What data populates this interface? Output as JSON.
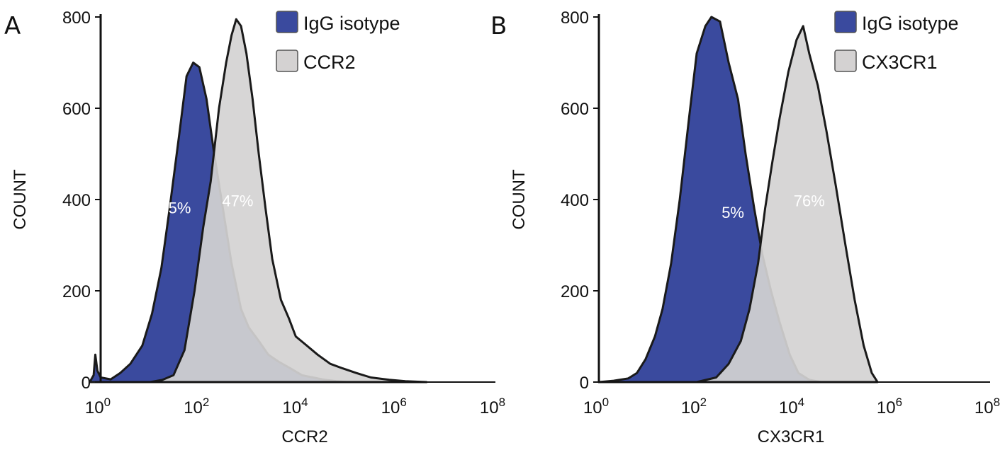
{
  "chart_data": [
    {
      "type": "area",
      "panel_letter": "A",
      "xlabel": "CCR2",
      "ylabel": "COUNT",
      "x_scale": "log10",
      "xlim": [
        1,
        100000000
      ],
      "ylim": [
        0,
        800
      ],
      "x_ticks": [
        {
          "base": "10",
          "exp": "0"
        },
        {
          "base": "10",
          "exp": "2"
        },
        {
          "base": "10",
          "exp": "4"
        },
        {
          "base": "10",
          "exp": "6"
        },
        {
          "base": "10",
          "exp": "8"
        }
      ],
      "y_ticks": [
        "0",
        "200",
        "400",
        "600",
        "800"
      ],
      "legend_position": "top-right",
      "legend": [
        {
          "label": "IgG isotype",
          "color": "#3a4a9e"
        },
        {
          "label": "CCR2",
          "color": "#d4d2d2"
        }
      ],
      "series": [
        {
          "name": "IgG isotype",
          "color": "#3a4a9e",
          "percent_label": "5%",
          "percent_at": {
            "x": 40,
            "y": 370
          },
          "points": [
            [
              0.6,
              0
            ],
            [
              0.72,
              15
            ],
            [
              0.78,
              60
            ],
            [
              0.86,
              25
            ],
            [
              1,
              10
            ],
            [
              1.6,
              6
            ],
            [
              2.5,
              20
            ],
            [
              4,
              40
            ],
            [
              7,
              80
            ],
            [
              11,
              150
            ],
            [
              17,
              250
            ],
            [
              25,
              380
            ],
            [
              40,
              550
            ],
            [
              55,
              670
            ],
            [
              75,
              700
            ],
            [
              100,
              690
            ],
            [
              140,
              620
            ],
            [
              200,
              500
            ],
            [
              300,
              380
            ],
            [
              450,
              260
            ],
            [
              700,
              160
            ],
            [
              1000,
              120
            ],
            [
              1600,
              90
            ],
            [
              2500,
              60
            ],
            [
              4000,
              45
            ],
            [
              7000,
              30
            ],
            [
              12000,
              15
            ],
            [
              20000,
              10
            ],
            [
              35000,
              5
            ],
            [
              60000,
              2
            ],
            [
              100000,
              0
            ]
          ]
        },
        {
          "name": "CCR2",
          "color": "#d4d2d2",
          "percent_label": "47%",
          "percent_at": {
            "x": 600,
            "y": 385
          },
          "points": [
            [
              0.6,
              0
            ],
            [
              5,
              0
            ],
            [
              10,
              0
            ],
            [
              18,
              5
            ],
            [
              30,
              15
            ],
            [
              50,
              70
            ],
            [
              80,
              200
            ],
            [
              120,
              340
            ],
            [
              170,
              440
            ],
            [
              250,
              600
            ],
            [
              350,
              700
            ],
            [
              450,
              760
            ],
            [
              560,
              795
            ],
            [
              700,
              780
            ],
            [
              900,
              720
            ],
            [
              1200,
              620
            ],
            [
              1600,
              500
            ],
            [
              2200,
              380
            ],
            [
              3000,
              270
            ],
            [
              4500,
              180
            ],
            [
              6500,
              140
            ],
            [
              9000,
              100
            ],
            [
              15000,
              80
            ],
            [
              25000,
              60
            ],
            [
              45000,
              40
            ],
            [
              80000,
              30
            ],
            [
              150000,
              20
            ],
            [
              300000,
              10
            ],
            [
              700000,
              5
            ],
            [
              1500000,
              2
            ],
            [
              4000000,
              0
            ]
          ]
        }
      ]
    },
    {
      "type": "area",
      "panel_letter": "B",
      "xlabel": "CX3CR1",
      "ylabel": "COUNT",
      "x_scale": "log10",
      "xlim": [
        1,
        100000000
      ],
      "ylim": [
        0,
        800
      ],
      "x_ticks": [
        {
          "base": "10",
          "exp": "0"
        },
        {
          "base": "10",
          "exp": "2"
        },
        {
          "base": "10",
          "exp": "4"
        },
        {
          "base": "10",
          "exp": "6"
        },
        {
          "base": "10",
          "exp": "8"
        }
      ],
      "y_ticks": [
        "0",
        "200",
        "400",
        "600",
        "800"
      ],
      "legend_position": "top-right",
      "legend": [
        {
          "label": "IgG isotype",
          "color": "#3a4a9e"
        },
        {
          "label": "CX3CR1",
          "color": "#d4d2d2"
        }
      ],
      "series": [
        {
          "name": "IgG isotype",
          "color": "#3a4a9e",
          "percent_label": "5%",
          "percent_at": {
            "x": 550,
            "y": 360
          },
          "points": [
            [
              1,
              0
            ],
            [
              2,
              3
            ],
            [
              4,
              8
            ],
            [
              6,
              20
            ],
            [
              9,
              50
            ],
            [
              14,
              100
            ],
            [
              20,
              160
            ],
            [
              30,
              260
            ],
            [
              45,
              400
            ],
            [
              70,
              580
            ],
            [
              100,
              720
            ],
            [
              150,
              780
            ],
            [
              200,
              800
            ],
            [
              300,
              790
            ],
            [
              450,
              700
            ],
            [
              700,
              620
            ],
            [
              1000,
              500
            ],
            [
              1500,
              380
            ],
            [
              2200,
              280
            ],
            [
              3300,
              200
            ],
            [
              5000,
              130
            ],
            [
              8000,
              60
            ],
            [
              12000,
              20
            ],
            [
              20000,
              5
            ],
            [
              35000,
              0
            ]
          ]
        },
        {
          "name": "CX3CR1",
          "color": "#d4d2d2",
          "percent_label": "76%",
          "percent_at": {
            "x": 20000,
            "y": 385
          },
          "points": [
            [
              1,
              0
            ],
            [
              100,
              0
            ],
            [
              250,
              10
            ],
            [
              450,
              40
            ],
            [
              800,
              90
            ],
            [
              1200,
              160
            ],
            [
              1800,
              260
            ],
            [
              2500,
              380
            ],
            [
              3500,
              480
            ],
            [
              5000,
              580
            ],
            [
              7500,
              680
            ],
            [
              11000,
              750
            ],
            [
              15000,
              780
            ],
            [
              20000,
              720
            ],
            [
              30000,
              650
            ],
            [
              45000,
              550
            ],
            [
              70000,
              430
            ],
            [
              110000,
              300
            ],
            [
              170000,
              180
            ],
            [
              260000,
              80
            ],
            [
              380000,
              20
            ],
            [
              500000,
              0
            ]
          ]
        }
      ]
    }
  ]
}
